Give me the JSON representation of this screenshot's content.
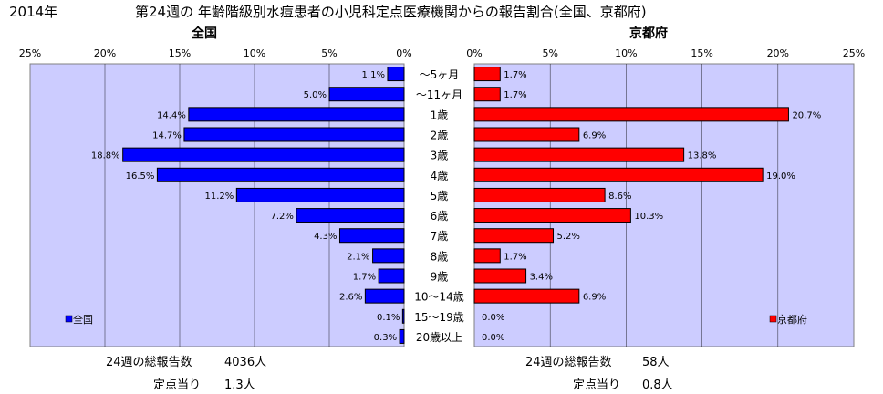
{
  "header": {
    "year": "2014年",
    "title": "第24週の 年齢階級別水痘患者の小児科定点医療機関からの報告割合(全国、京都府)"
  },
  "chart_data": {
    "type": "bar",
    "orientation": "horizontal-butterfly",
    "categories": [
      "〜5ヶ月",
      "〜11ヶ月",
      "1歳",
      "2歳",
      "3歳",
      "4歳",
      "5歳",
      "6歳",
      "7歳",
      "8歳",
      "9歳",
      "10〜14歳",
      "15〜19歳",
      "20歳以上"
    ],
    "axis": {
      "min": 0,
      "max": 25,
      "step": 5,
      "unit": "%",
      "grid": true
    },
    "series": [
      {
        "name": "全国",
        "side": "left",
        "color": "#0000ff",
        "values": [
          1.1,
          5.0,
          14.4,
          14.7,
          18.8,
          16.5,
          11.2,
          7.2,
          4.3,
          2.1,
          1.7,
          2.6,
          0.1,
          0.3
        ],
        "labels": [
          "1.1%",
          "5.0%",
          "14.4%",
          "14.7%",
          "18.8%",
          "16.5%",
          "11.2%",
          "7.2%",
          "4.3%",
          "2.1%",
          "1.7%",
          "2.6%",
          "0.1%",
          "0.3%"
        ]
      },
      {
        "name": "京都府",
        "side": "right",
        "color": "#ff0000",
        "values": [
          1.7,
          1.7,
          20.7,
          6.9,
          13.8,
          19.0,
          8.6,
          10.3,
          5.2,
          1.7,
          3.4,
          6.9,
          0.0,
          0.0
        ],
        "labels": [
          "1.7%",
          "1.7%",
          "20.7%",
          "6.9%",
          "13.8%",
          "19.0%",
          "8.6%",
          "10.3%",
          "5.2%",
          "1.7%",
          "3.4%",
          "6.9%",
          "0.0%",
          "0.0%"
        ]
      }
    ],
    "tick_labels": [
      "0%",
      "5%",
      "10%",
      "15%",
      "20%",
      "25%"
    ],
    "plot_background": "#ccccff",
    "legend_placement": "bottom-inside"
  },
  "left_panel": {
    "title": "全国",
    "total_label": "24週の総報告数",
    "total_value": "4036人",
    "per_label": "定点当り",
    "per_value": "1.3人"
  },
  "right_panel": {
    "title": "京都府",
    "total_label": "24週の総報告数",
    "total_value": "58人",
    "per_label": "定点当り",
    "per_value": "0.8人"
  }
}
